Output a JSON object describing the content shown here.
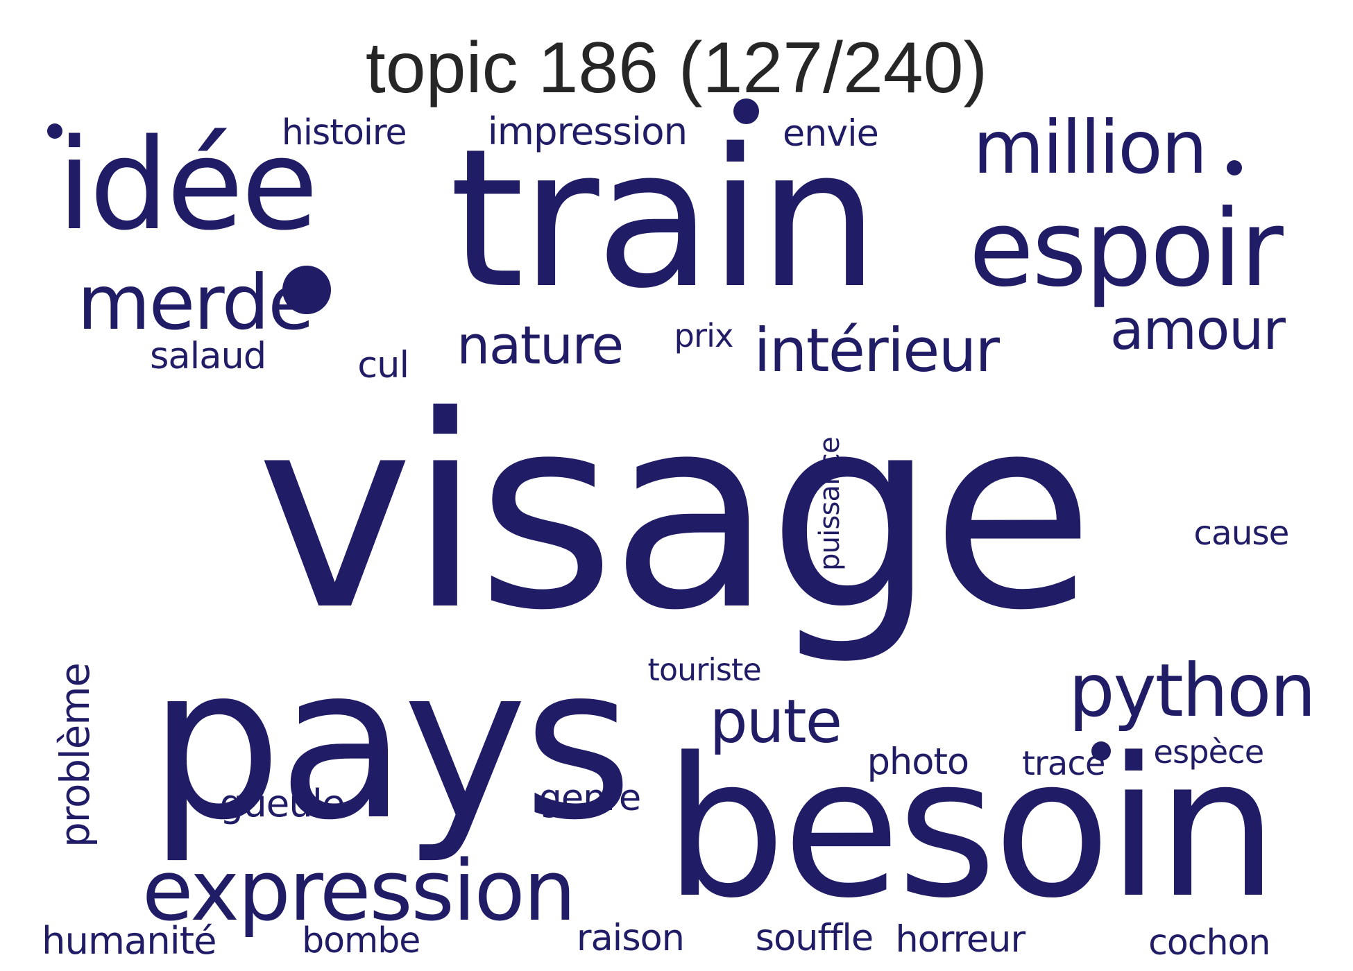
{
  "title": "topic 186 (127/240)",
  "colors": {
    "word": "#211c66",
    "title": "#262626",
    "background": "#ffffff"
  },
  "words": [
    {
      "text": "visage",
      "orientation": "horizontal"
    },
    {
      "text": "train",
      "orientation": "horizontal"
    },
    {
      "text": "besoin",
      "orientation": "horizontal"
    },
    {
      "text": "pays",
      "orientation": "horizontal"
    },
    {
      "text": "espoir",
      "orientation": "horizontal"
    },
    {
      "text": "idée",
      "orientation": "horizontal"
    },
    {
      "text": "merde",
      "orientation": "horizontal"
    },
    {
      "text": "expression",
      "orientation": "horizontal"
    },
    {
      "text": "python",
      "orientation": "horizontal"
    },
    {
      "text": "million",
      "orientation": "horizontal"
    },
    {
      "text": "intérieur",
      "orientation": "horizontal"
    },
    {
      "text": "pute",
      "orientation": "horizontal"
    },
    {
      "text": "amour",
      "orientation": "horizontal"
    },
    {
      "text": "problème",
      "orientation": "vertical"
    },
    {
      "text": "nature",
      "orientation": "horizontal"
    },
    {
      "text": "puissance",
      "orientation": "vertical"
    },
    {
      "text": "impression",
      "orientation": "horizontal"
    },
    {
      "text": "histoire",
      "orientation": "horizontal"
    },
    {
      "text": "envie",
      "orientation": "horizontal"
    },
    {
      "text": "salaud",
      "orientation": "horizontal"
    },
    {
      "text": "cul",
      "orientation": "horizontal"
    },
    {
      "text": "prix",
      "orientation": "horizontal"
    },
    {
      "text": "cause",
      "orientation": "horizontal"
    },
    {
      "text": "touriste",
      "orientation": "horizontal"
    },
    {
      "text": "photo",
      "orientation": "horizontal"
    },
    {
      "text": "trace",
      "orientation": "horizontal"
    },
    {
      "text": "espèce",
      "orientation": "horizontal"
    },
    {
      "text": "gueule",
      "orientation": "horizontal"
    },
    {
      "text": "genre",
      "orientation": "horizontal"
    },
    {
      "text": "humanité",
      "orientation": "horizontal"
    },
    {
      "text": "bombe",
      "orientation": "horizontal"
    },
    {
      "text": "raison",
      "orientation": "horizontal"
    },
    {
      "text": "souffle",
      "orientation": "horizontal"
    },
    {
      "text": "horreur",
      "orientation": "horizontal"
    },
    {
      "text": "cochon",
      "orientation": "horizontal"
    }
  ]
}
